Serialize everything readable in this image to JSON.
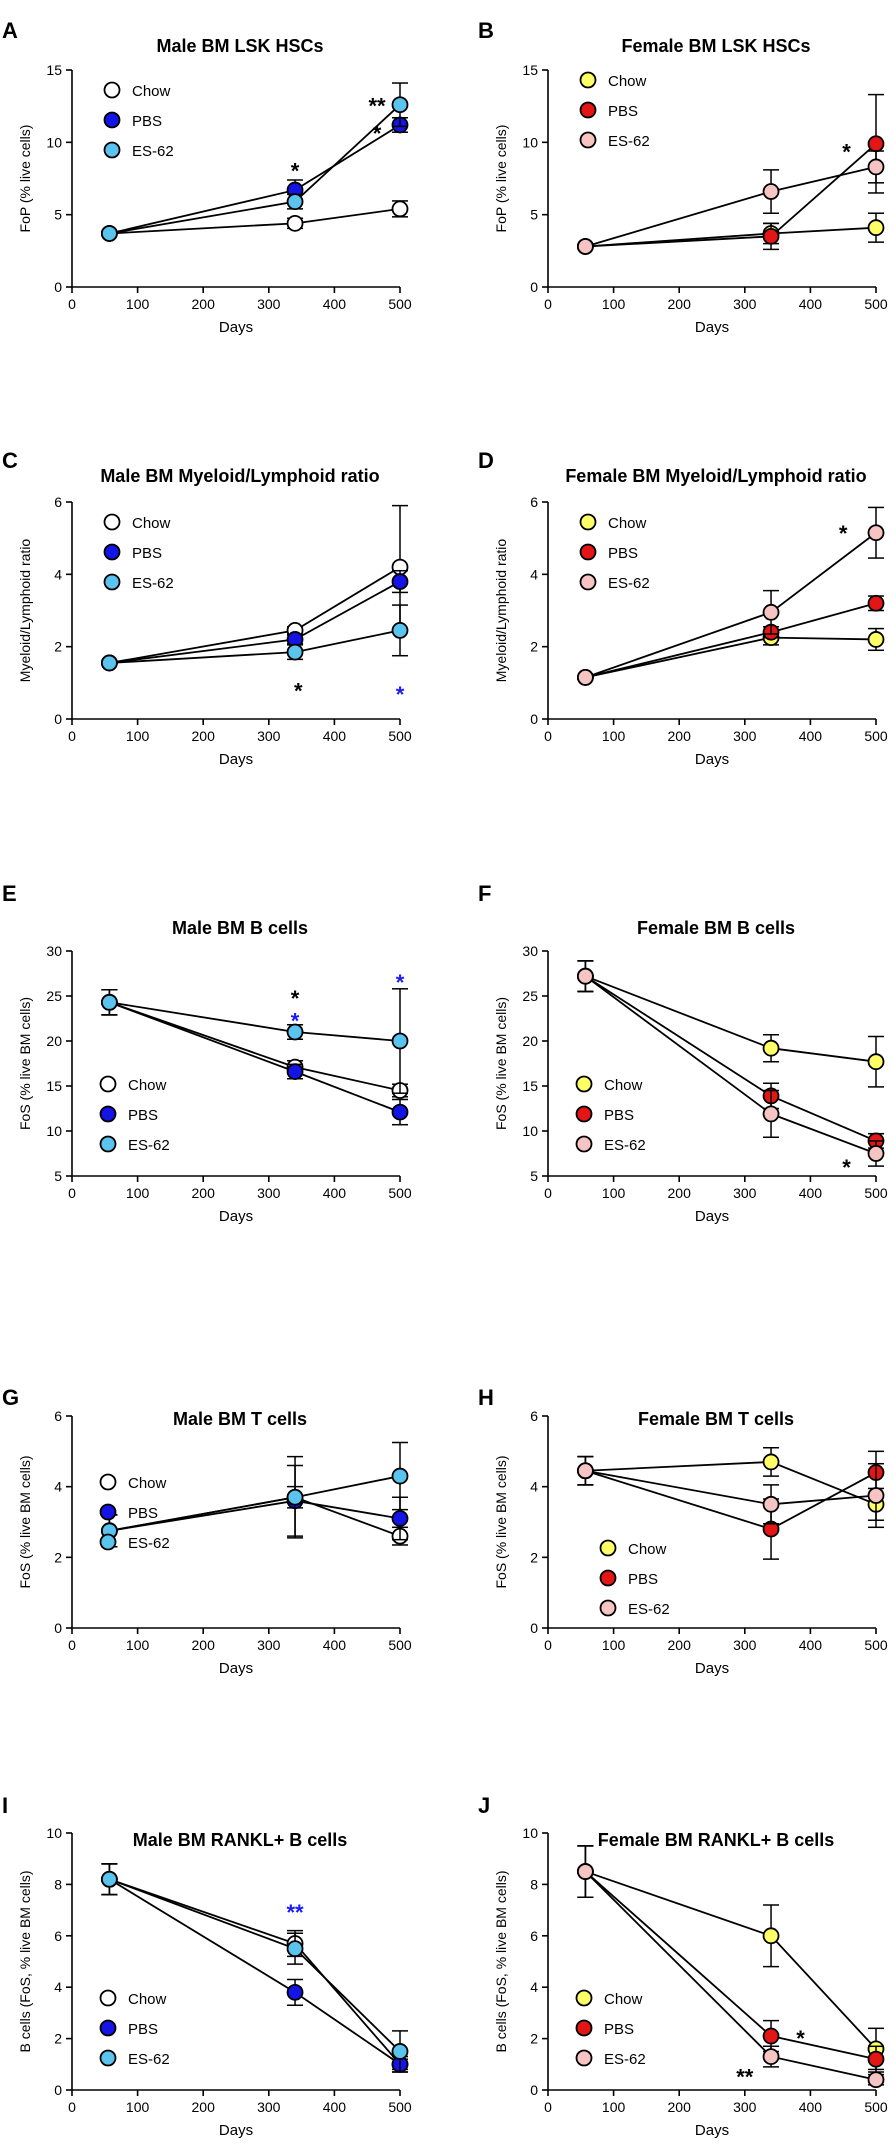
{
  "figure": {
    "styles": {
      "Chow": {
        "fill": "#ffffff"
      },
      "PBS": {
        "fill": "#1414e6"
      },
      "ES-62": {
        "fill": "#5bc4ee"
      },
      "Chow_f": {
        "fill": "#ffff66"
      },
      "PBS_f": {
        "fill": "#e31515"
      },
      "ES-62_f": {
        "fill": "#f7c4c4"
      },
      "star_black": "#000000",
      "star_blue": "#1a1aff"
    }
  },
  "chart_data": [
    {
      "id": "A",
      "panel_label": "A",
      "type": "line",
      "title": "Male BM LSK HSCs",
      "xlabel": "Days",
      "ylabel": "FoP (% live cells)",
      "xlim": [
        0,
        500
      ],
      "ylim": [
        0,
        15
      ],
      "xticks": [
        0,
        100,
        200,
        300,
        400,
        500
      ],
      "yticks": [
        0,
        5,
        10,
        15
      ],
      "x": [
        57,
        340,
        500
      ],
      "legend_position": "top-left",
      "series": [
        {
          "name": "Chow",
          "style": "Chow",
          "values": [
            3.7,
            4.4,
            5.4
          ],
          "errors": [
            0.15,
            0.35,
            0.55
          ]
        },
        {
          "name": "PBS",
          "style": "PBS",
          "values": [
            3.7,
            6.7,
            11.2
          ],
          "errors": [
            0.15,
            0.7,
            0.5
          ]
        },
        {
          "name": "ES-62",
          "style": "ES-62",
          "values": [
            3.7,
            5.9,
            12.6
          ],
          "errors": [
            0.15,
            0.5,
            1.5
          ]
        }
      ],
      "annotations": [
        {
          "text": "*",
          "x": 340,
          "y": 8.2,
          "color": "star_black"
        },
        {
          "text": "**",
          "x": 465,
          "y": 12.7,
          "color": "star_black"
        },
        {
          "text": "*",
          "x": 465,
          "y": 10.8,
          "color": "star_black"
        }
      ]
    },
    {
      "id": "B",
      "panel_label": "B",
      "type": "line",
      "title": "Female BM LSK HSCs",
      "xlabel": "Days",
      "ylabel": "FoP (% live cells)",
      "xlim": [
        0,
        500
      ],
      "ylim": [
        0,
        15
      ],
      "xticks": [
        0,
        100,
        200,
        300,
        400,
        500
      ],
      "yticks": [
        0,
        5,
        10,
        15
      ],
      "x": [
        57,
        340,
        500
      ],
      "legend_position": "top-left",
      "series": [
        {
          "name": "Chow",
          "style": "Chow_f",
          "values": [
            2.8,
            3.7,
            4.1
          ],
          "errors": [
            0.15,
            0.7,
            1.0
          ]
        },
        {
          "name": "PBS",
          "style": "PBS_f",
          "values": [
            2.8,
            3.5,
            9.9
          ],
          "errors": [
            0.15,
            0.9,
            3.4
          ]
        },
        {
          "name": "ES-62",
          "style": "ES-62_f",
          "values": [
            2.8,
            6.6,
            8.3
          ],
          "errors": [
            0.15,
            1.5,
            1.1
          ]
        }
      ],
      "annotations": [
        {
          "text": "*",
          "x": 455,
          "y": 9.5,
          "color": "star_black"
        }
      ]
    },
    {
      "id": "C",
      "panel_label": "C",
      "type": "line",
      "title": "Male BM Myeloid/Lymphoid ratio",
      "xlabel": "Days",
      "ylabel": "Myeloid/Lymphoid ratio",
      "xlim": [
        0,
        500
      ],
      "ylim": [
        0,
        6
      ],
      "xticks": [
        0,
        100,
        200,
        300,
        400,
        500
      ],
      "yticks": [
        0,
        2,
        4,
        6
      ],
      "x": [
        57,
        340,
        500
      ],
      "legend_position": "top-left",
      "series": [
        {
          "name": "Chow",
          "style": "Chow",
          "values": [
            1.55,
            2.45,
            4.2
          ],
          "errors": [
            0.05,
            0.1,
            1.7
          ]
        },
        {
          "name": "PBS",
          "style": "PBS",
          "values": [
            1.55,
            2.2,
            3.8
          ],
          "errors": [
            0.05,
            0.12,
            0.3
          ]
        },
        {
          "name": "ES-62",
          "style": "ES-62",
          "values": [
            1.55,
            1.85,
            2.45
          ],
          "errors": [
            0.05,
            0.2,
            0.7
          ]
        }
      ],
      "annotations": [
        {
          "text": "*",
          "x": 345,
          "y": 0.85,
          "color": "star_black"
        },
        {
          "text": "*",
          "x": 500,
          "y": 0.75,
          "color": "star_blue"
        }
      ]
    },
    {
      "id": "D",
      "panel_label": "D",
      "type": "line",
      "title": "Female BM Myeloid/Lymphoid ratio",
      "xlabel": "Days",
      "ylabel": "Myeloid/Lymphoid ratio",
      "xlim": [
        0,
        500
      ],
      "ylim": [
        0,
        6
      ],
      "xticks": [
        0,
        100,
        200,
        300,
        400,
        500
      ],
      "yticks": [
        0,
        2,
        4,
        6
      ],
      "x": [
        57,
        340,
        500
      ],
      "legend_position": "top-left",
      "series": [
        {
          "name": "Chow",
          "style": "Chow_f",
          "values": [
            1.15,
            2.25,
            2.2
          ],
          "errors": [
            0.05,
            0.2,
            0.3
          ]
        },
        {
          "name": "PBS",
          "style": "PBS_f",
          "values": [
            1.15,
            2.4,
            3.2
          ],
          "errors": [
            0.05,
            0.15,
            0.2
          ]
        },
        {
          "name": "ES-62",
          "style": "ES-62_f",
          "values": [
            1.15,
            2.95,
            5.15
          ],
          "errors": [
            0.05,
            0.6,
            0.7
          ]
        }
      ],
      "annotations": [
        {
          "text": "*",
          "x": 450,
          "y": 5.2,
          "color": "star_black"
        }
      ]
    },
    {
      "id": "E",
      "panel_label": "E",
      "type": "line",
      "title": "Male BM B cells",
      "xlabel": "Days",
      "ylabel": "FoS (% live BM cells)",
      "xlim": [
        0,
        500
      ],
      "ylim": [
        5,
        30
      ],
      "xticks": [
        0,
        100,
        200,
        300,
        400,
        500
      ],
      "yticks": [
        5,
        10,
        15,
        20,
        25,
        30
      ],
      "x": [
        57,
        340,
        500
      ],
      "legend_position": "bottom-left",
      "series": [
        {
          "name": "Chow",
          "style": "Chow",
          "values": [
            24.3,
            17.1,
            14.5
          ],
          "errors": [
            1.4,
            0.7,
            0.7
          ]
        },
        {
          "name": "PBS",
          "style": "PBS",
          "values": [
            24.3,
            16.6,
            12.1
          ],
          "errors": [
            1.4,
            0.8,
            1.4
          ]
        },
        {
          "name": "ES-62",
          "style": "ES-62",
          "values": [
            24.3,
            21.0,
            20.0
          ],
          "errors": [
            1.4,
            0.8,
            5.8
          ]
        }
      ],
      "annotations": [
        {
          "text": "*",
          "x": 340,
          "y": 25.0,
          "color": "star_black"
        },
        {
          "text": "*",
          "x": 340,
          "y": 22.5,
          "color": "star_blue"
        },
        {
          "text": "*",
          "x": 500,
          "y": 26.8,
          "color": "star_blue"
        }
      ]
    },
    {
      "id": "F",
      "panel_label": "F",
      "type": "line",
      "title": "Female BM B cells",
      "xlabel": "Days",
      "ylabel": "FoS (% live BM cells)",
      "xlim": [
        0,
        500
      ],
      "ylim": [
        5,
        30
      ],
      "xticks": [
        0,
        100,
        200,
        300,
        400,
        500
      ],
      "yticks": [
        5,
        10,
        15,
        20,
        25,
        30
      ],
      "x": [
        57,
        340,
        500
      ],
      "legend_position": "bottom-left",
      "series": [
        {
          "name": "Chow",
          "style": "Chow_f",
          "values": [
            27.2,
            19.2,
            17.7
          ],
          "errors": [
            1.7,
            1.5,
            2.8
          ]
        },
        {
          "name": "PBS",
          "style": "PBS_f",
          "values": [
            27.2,
            13.9,
            8.9
          ],
          "errors": [
            1.7,
            1.4,
            0.8
          ]
        },
        {
          "name": "ES-62",
          "style": "ES-62_f",
          "values": [
            27.2,
            11.9,
            7.5
          ],
          "errors": [
            1.7,
            2.6,
            1.4
          ]
        }
      ],
      "annotations": [
        {
          "text": "*",
          "x": 455,
          "y": 6.2,
          "color": "star_black"
        }
      ]
    },
    {
      "id": "G",
      "panel_label": "G",
      "type": "line",
      "title": "Male BM T cells",
      "xlabel": "Days",
      "ylabel": "FoS (% live BM cells)",
      "xlim": [
        0,
        500
      ],
      "ylim": [
        0,
        6
      ],
      "xticks": [
        0,
        100,
        200,
        300,
        400,
        500
      ],
      "yticks": [
        0,
        2,
        4,
        6
      ],
      "x": [
        57,
        340,
        500
      ],
      "legend_position": "top-left",
      "series": [
        {
          "name": "Chow",
          "style": "Chow",
          "values": [
            2.75,
            3.7,
            2.6
          ],
          "errors": [
            0.45,
            0.3,
            0.25
          ]
        },
        {
          "name": "PBS",
          "style": "PBS",
          "values": [
            2.75,
            3.6,
            3.1
          ],
          "errors": [
            0.45,
            1.0,
            0.6
          ]
        },
        {
          "name": "ES-62",
          "style": "ES-62",
          "values": [
            2.75,
            3.7,
            4.3
          ],
          "errors": [
            0.45,
            1.15,
            0.95
          ]
        }
      ],
      "annotations": []
    },
    {
      "id": "H",
      "panel_label": "H",
      "type": "line",
      "title": "Female BM T cells",
      "xlabel": "Days",
      "ylabel": "FoS (% live BM cells)",
      "xlim": [
        0,
        500
      ],
      "ylim": [
        0,
        6
      ],
      "xticks": [
        0,
        100,
        200,
        300,
        400,
        500
      ],
      "yticks": [
        0,
        2,
        4,
        6
      ],
      "x": [
        57,
        340,
        500
      ],
      "legend_position": "bottom-left",
      "series": [
        {
          "name": "Chow",
          "style": "Chow_f",
          "values": [
            4.45,
            4.7,
            3.5
          ],
          "errors": [
            0.4,
            0.4,
            0.45
          ]
        },
        {
          "name": "PBS",
          "style": "PBS_f",
          "values": [
            4.45,
            2.8,
            4.4
          ],
          "errors": [
            0.4,
            0.85,
            0.6
          ]
        },
        {
          "name": "ES-62",
          "style": "ES-62_f",
          "values": [
            4.45,
            3.5,
            3.75
          ],
          "errors": [
            0.4,
            0.55,
            0.9
          ]
        }
      ],
      "annotations": []
    },
    {
      "id": "I",
      "panel_label": "I",
      "type": "line",
      "title": "Male BM RANKL+ B cells",
      "xlabel": "Days",
      "ylabel": "B cells (FoS, % live BM cells)",
      "xlim": [
        0,
        500
      ],
      "ylim": [
        0,
        10
      ],
      "xticks": [
        0,
        100,
        200,
        300,
        400,
        500
      ],
      "yticks": [
        0,
        2,
        4,
        6,
        8,
        10
      ],
      "x": [
        57,
        340,
        500
      ],
      "legend_position": "bottom-left",
      "series": [
        {
          "name": "Chow",
          "style": "Chow",
          "values": [
            8.2,
            5.7,
            1.0
          ],
          "errors": [
            0.6,
            0.5,
            0.2
          ]
        },
        {
          "name": "PBS",
          "style": "PBS",
          "values": [
            8.2,
            3.8,
            1.0
          ],
          "errors": [
            0.6,
            0.5,
            0.3
          ]
        },
        {
          "name": "ES-62",
          "style": "ES-62",
          "values": [
            8.2,
            5.5,
            1.5
          ],
          "errors": [
            0.6,
            0.6,
            0.8
          ]
        }
      ],
      "annotations": [
        {
          "text": "**",
          "x": 340,
          "y": 7.0,
          "color": "star_blue"
        }
      ]
    },
    {
      "id": "J",
      "panel_label": "J",
      "type": "line",
      "title": "Female BM RANKL+ B cells",
      "xlabel": "Days",
      "ylabel": "B cells (FoS, % live BM cells)",
      "xlim": [
        0,
        500
      ],
      "ylim": [
        0,
        10
      ],
      "xticks": [
        0,
        100,
        200,
        300,
        400,
        500
      ],
      "yticks": [
        0,
        2,
        4,
        6,
        8,
        10
      ],
      "x": [
        57,
        340,
        500
      ],
      "legend_position": "bottom-left",
      "series": [
        {
          "name": "Chow",
          "style": "Chow_f",
          "values": [
            8.5,
            6.0,
            1.6
          ],
          "errors": [
            1.0,
            1.2,
            0.8
          ]
        },
        {
          "name": "PBS",
          "style": "PBS_f",
          "values": [
            8.5,
            2.1,
            1.2
          ],
          "errors": [
            1.0,
            0.6,
            0.5
          ]
        },
        {
          "name": "ES-62",
          "style": "ES-62_f",
          "values": [
            8.5,
            1.3,
            0.4
          ],
          "errors": [
            1.0,
            0.4,
            0.2
          ]
        }
      ],
      "annotations": [
        {
          "text": "*",
          "x": 385,
          "y": 2.1,
          "color": "star_black"
        },
        {
          "text": "**",
          "x": 300,
          "y": 0.6,
          "color": "star_black"
        }
      ]
    }
  ]
}
